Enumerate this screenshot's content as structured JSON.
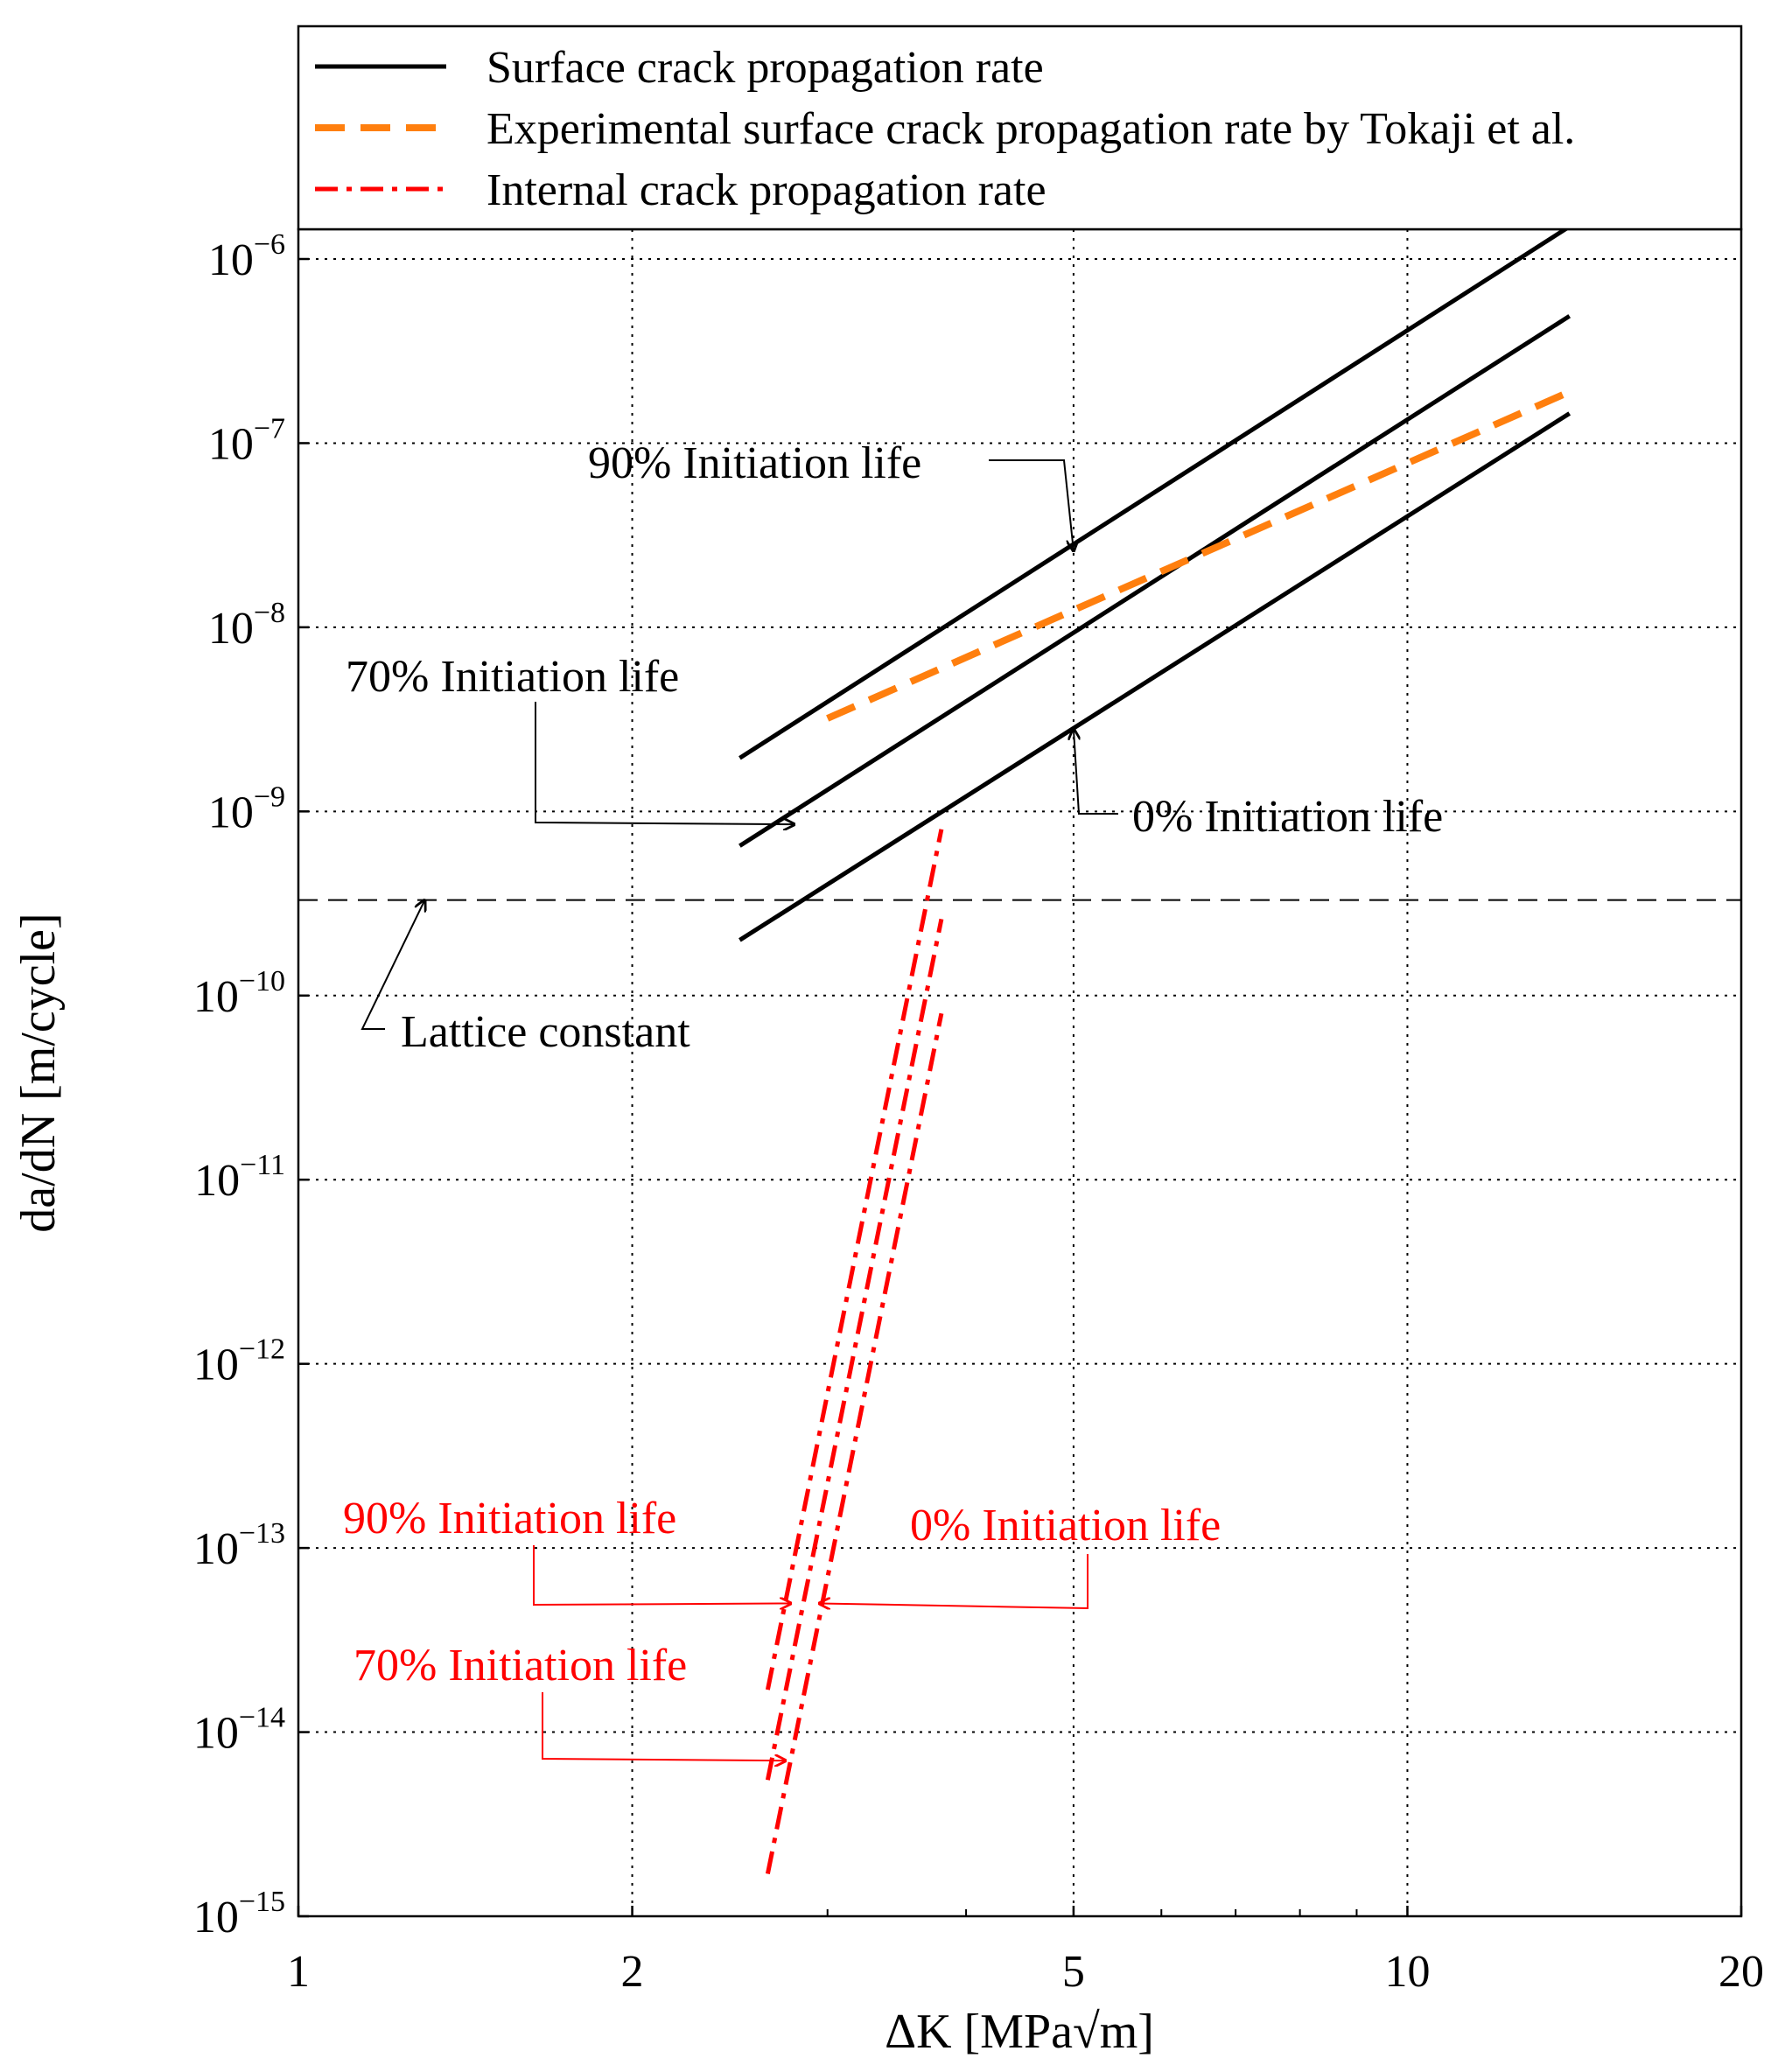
{
  "chart_data": {
    "type": "line",
    "xscale": "log",
    "yscale": "log",
    "xlabel": "ΔK [MPa√m]",
    "ylabel": "da/dN [m/cycle]",
    "xlim": [
      1,
      20
    ],
    "ylim": [
      1e-15,
      1.5e-06
    ],
    "grid": true,
    "x_ticks": [
      {
        "value": 1,
        "label": "1"
      },
      {
        "value": 2,
        "label": "2"
      },
      {
        "value": 5,
        "label": "5"
      },
      {
        "value": 10,
        "label": "10"
      },
      {
        "value": 20,
        "label": "20"
      }
    ],
    "y_ticks": [
      {
        "value": 1e-06,
        "base": "10",
        "exp": "−6"
      },
      {
        "value": 1e-07,
        "base": "10",
        "exp": "−7"
      },
      {
        "value": 1e-08,
        "base": "10",
        "exp": "−8"
      },
      {
        "value": 1e-09,
        "base": "10",
        "exp": "−9"
      },
      {
        "value": 1e-10,
        "base": "10",
        "exp": "−10"
      },
      {
        "value": 1e-11,
        "base": "10",
        "exp": "−11"
      },
      {
        "value": 1e-12,
        "base": "10",
        "exp": "−12"
      },
      {
        "value": 1e-13,
        "base": "10",
        "exp": "−13"
      },
      {
        "value": 1e-14,
        "base": "10",
        "exp": "−14"
      },
      {
        "value": 1e-15,
        "base": "10",
        "exp": "−15"
      }
    ],
    "legend": {
      "position": "top",
      "entries": [
        {
          "label": "Surface crack propagation rate",
          "color": "#000000",
          "style": "solid"
        },
        {
          "label": "Experimental surface crack propagation rate by Tokaji et al.",
          "color": "#ff7f0e",
          "style": "dashed"
        },
        {
          "label": "Internal crack propagation rate",
          "color": "#ff0000",
          "style": "dashdot"
        }
      ]
    },
    "series": [
      {
        "name": "Surface crack propagation rate (90% Initiation life)",
        "group": "surface",
        "color": "#000000",
        "style": "solid",
        "x": [
          2.5,
          14.0
        ],
        "y": [
          1.95e-09,
          1.5e-06
        ]
      },
      {
        "name": "Surface crack propagation rate (70% Initiation life)",
        "group": "surface",
        "color": "#000000",
        "style": "solid",
        "x": [
          2.5,
          14.0
        ],
        "y": [
          6.5e-10,
          4.9e-07
        ]
      },
      {
        "name": "Surface crack propagation rate (0% Initiation life)",
        "group": "surface",
        "color": "#000000",
        "style": "solid",
        "x": [
          2.5,
          14.0
        ],
        "y": [
          2e-10,
          1.45e-07
        ]
      },
      {
        "name": "Experimental surface crack propagation rate by Tokaji et al.",
        "group": "experimental",
        "color": "#ff7f0e",
        "style": "dashed",
        "x": [
          3.0,
          14.0
        ],
        "y": [
          3.2e-09,
          1.9e-07
        ]
      },
      {
        "name": "Internal crack propagation rate (90% Initiation life)",
        "group": "internal",
        "color": "#ff0000",
        "style": "dashdot",
        "x": [
          2.65,
          3.8
        ],
        "y": [
          1.7e-14,
          8e-10
        ]
      },
      {
        "name": "Internal crack propagation rate (70% Initiation life)",
        "group": "internal",
        "color": "#ff0000",
        "style": "dashdot",
        "x": [
          2.65,
          3.8
        ],
        "y": [
          5.5e-15,
          2.6e-10
        ]
      },
      {
        "name": "Internal crack propagation rate (0% Initiation life)",
        "group": "internal",
        "color": "#ff0000",
        "style": "dashdot",
        "x": [
          2.65,
          3.8
        ],
        "y": [
          1.7e-15,
          8e-11
        ]
      }
    ],
    "reference_lines": [
      {
        "name": "Lattice constant",
        "y": 3.3e-10,
        "color": "#000000",
        "style": "dashed"
      }
    ],
    "annotations": [
      {
        "text": "90% Initiation life",
        "color": "#000000",
        "target": [
          5.0,
          2.6e-08
        ]
      },
      {
        "text": "70% Initiation life",
        "color": "#000000",
        "target": [
          2.8,
          8.5e-10
        ]
      },
      {
        "text": "0% Initiation life",
        "color": "#000000",
        "target": [
          5.0,
          2.8e-09
        ]
      },
      {
        "text": "Lattice constant",
        "color": "#000000",
        "target": [
          1.3,
          3.3e-10
        ]
      },
      {
        "text": "90% Initiation life",
        "color": "#ff0000",
        "target": [
          2.78,
          5e-14
        ]
      },
      {
        "text": "0% Initiation life",
        "color": "#ff0000",
        "target": [
          2.95,
          5e-14
        ]
      },
      {
        "text": "70% Initiation life",
        "color": "#ff0000",
        "target": [
          2.75,
          7e-15
        ]
      }
    ]
  }
}
